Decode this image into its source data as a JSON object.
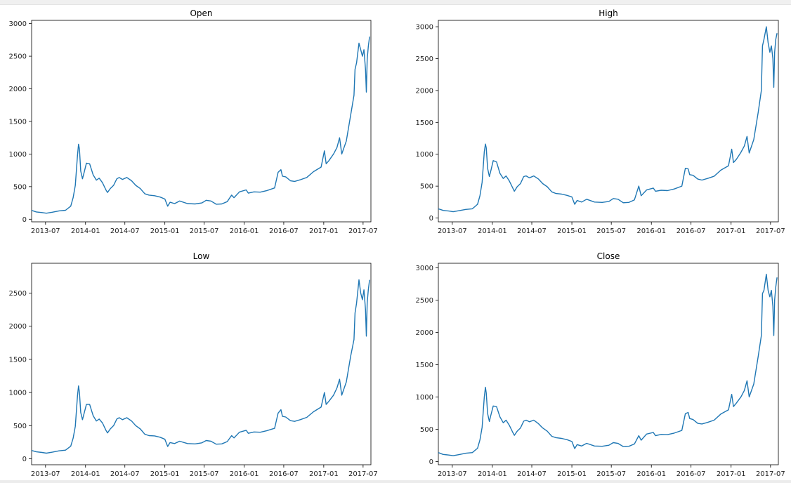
{
  "chart_data": [
    {
      "type": "line",
      "title": "Open",
      "xlabel": "",
      "ylabel": "",
      "x_start": "2013-04-28",
      "x_end": "2017-08-06",
      "x_ticks": [
        "2013-07",
        "2014-01",
        "2014-07",
        "2015-01",
        "2015-07",
        "2016-01",
        "2016-07",
        "2017-01",
        "2017-07"
      ],
      "ylim": [
        -40,
        3050
      ],
      "y_ticks": [
        0,
        500,
        1000,
        1500,
        2000,
        2500,
        3000
      ],
      "color": "#1f77b4",
      "series": [
        {
          "x": [
            "2013-04-28",
            "2013-05-20",
            "2013-06-15",
            "2013-07-05",
            "2013-08-01",
            "2013-09-01",
            "2013-10-01",
            "2013-10-25",
            "2013-11-05",
            "2013-11-15",
            "2013-11-25",
            "2013-11-30",
            "2013-12-04",
            "2013-12-10",
            "2013-12-18",
            "2013-12-25",
            "2014-01-05",
            "2014-01-20",
            "2014-02-05",
            "2014-02-20",
            "2014-03-05",
            "2014-03-20",
            "2014-04-05",
            "2014-04-12",
            "2014-04-25",
            "2014-05-10",
            "2014-05-25",
            "2014-06-05",
            "2014-06-20",
            "2014-07-10",
            "2014-08-01",
            "2014-08-20",
            "2014-09-10",
            "2014-10-01",
            "2014-10-20",
            "2014-11-15",
            "2014-12-10",
            "2015-01-01",
            "2015-01-14",
            "2015-01-25",
            "2015-02-15",
            "2015-03-10",
            "2015-04-15",
            "2015-05-20",
            "2015-06-20",
            "2015-07-10",
            "2015-08-01",
            "2015-08-25",
            "2015-09-20",
            "2015-10-15",
            "2015-11-04",
            "2015-11-15",
            "2015-12-10",
            "2016-01-10",
            "2016-01-20",
            "2016-02-15",
            "2016-03-15",
            "2016-04-15",
            "2016-05-20",
            "2016-06-05",
            "2016-06-18",
            "2016-06-25",
            "2016-07-10",
            "2016-08-01",
            "2016-08-20",
            "2016-09-15",
            "2016-10-15",
            "2016-11-15",
            "2016-12-20",
            "2017-01-04",
            "2017-01-12",
            "2017-01-25",
            "2017-02-15",
            "2017-03-03",
            "2017-03-15",
            "2017-03-25",
            "2017-04-15",
            "2017-05-05",
            "2017-05-20",
            "2017-05-25",
            "2017-06-01",
            "2017-06-12",
            "2017-06-20",
            "2017-06-28",
            "2017-07-05",
            "2017-07-12",
            "2017-07-16",
            "2017-07-20",
            "2017-07-25",
            "2017-07-31"
          ],
          "y": [
            135,
            112,
            102,
            92,
            108,
            128,
            138,
            200,
            330,
            520,
            980,
            1150,
            1080,
            740,
            620,
            710,
            860,
            850,
            680,
            600,
            630,
            560,
            450,
            410,
            470,
            520,
            620,
            640,
            610,
            640,
            590,
            520,
            470,
            390,
            370,
            360,
            340,
            310,
            200,
            260,
            240,
            280,
            240,
            235,
            250,
            290,
            280,
            230,
            235,
            270,
            370,
            330,
            420,
            450,
            400,
            420,
            415,
            440,
            480,
            720,
            760,
            660,
            650,
            590,
            580,
            605,
            640,
            730,
            800,
            1050,
            850,
            900,
            1000,
            1100,
            1250,
            1000,
            1200,
            1600,
            1900,
            2300,
            2400,
            2700,
            2600,
            2500,
            2600,
            2300,
            1950,
            2450,
            2650,
            2800
          ]
        }
      ]
    },
    {
      "type": "line",
      "title": "High",
      "xlabel": "",
      "ylabel": "",
      "x_start": "2013-04-28",
      "x_end": "2017-08-06",
      "x_ticks": [
        "2013-07",
        "2014-01",
        "2014-07",
        "2015-01",
        "2015-07",
        "2016-01",
        "2016-07",
        "2017-01",
        "2017-07"
      ],
      "ylim": [
        -60,
        3100
      ],
      "y_ticks": [
        0,
        500,
        1000,
        1500,
        2000,
        2500,
        3000
      ],
      "color": "#1f77b4",
      "series": [
        {
          "x": [
            "2013-04-28",
            "2013-05-20",
            "2013-06-15",
            "2013-07-05",
            "2013-08-01",
            "2013-09-01",
            "2013-10-01",
            "2013-10-25",
            "2013-11-05",
            "2013-11-15",
            "2013-11-25",
            "2013-11-30",
            "2013-12-04",
            "2013-12-10",
            "2013-12-18",
            "2013-12-25",
            "2014-01-05",
            "2014-01-20",
            "2014-02-05",
            "2014-02-20",
            "2014-03-05",
            "2014-03-20",
            "2014-04-05",
            "2014-04-12",
            "2014-04-25",
            "2014-05-10",
            "2014-05-25",
            "2014-06-05",
            "2014-06-20",
            "2014-07-10",
            "2014-08-01",
            "2014-08-20",
            "2014-09-10",
            "2014-10-01",
            "2014-10-20",
            "2014-11-15",
            "2014-12-10",
            "2015-01-01",
            "2015-01-14",
            "2015-01-25",
            "2015-02-15",
            "2015-03-10",
            "2015-04-15",
            "2015-05-20",
            "2015-06-20",
            "2015-07-10",
            "2015-08-01",
            "2015-08-25",
            "2015-09-20",
            "2015-10-15",
            "2015-11-04",
            "2015-11-15",
            "2015-12-10",
            "2016-01-10",
            "2016-01-20",
            "2016-02-15",
            "2016-03-15",
            "2016-04-15",
            "2016-05-20",
            "2016-06-05",
            "2016-06-18",
            "2016-06-25",
            "2016-07-10",
            "2016-08-01",
            "2016-08-20",
            "2016-09-15",
            "2016-10-15",
            "2016-11-15",
            "2016-12-20",
            "2017-01-04",
            "2017-01-12",
            "2017-01-25",
            "2017-02-15",
            "2017-03-03",
            "2017-03-15",
            "2017-03-25",
            "2017-04-15",
            "2017-05-05",
            "2017-05-20",
            "2017-05-25",
            "2017-06-01",
            "2017-06-12",
            "2017-06-20",
            "2017-06-28",
            "2017-07-05",
            "2017-07-12",
            "2017-07-16",
            "2017-07-20",
            "2017-07-25",
            "2017-07-31"
          ],
          "y": [
            145,
            120,
            110,
            98,
            115,
            135,
            145,
            215,
            350,
            560,
            1040,
            1160,
            1100,
            780,
            650,
            740,
            900,
            880,
            700,
            620,
            660,
            580,
            470,
            420,
            490,
            540,
            650,
            660,
            630,
            660,
            610,
            540,
            490,
            410,
            385,
            375,
            355,
            330,
            215,
            275,
            250,
            295,
            250,
            245,
            260,
            305,
            295,
            240,
            245,
            285,
            500,
            350,
            440,
            470,
            420,
            435,
            430,
            455,
            500,
            780,
            770,
            680,
            670,
            610,
            595,
            620,
            655,
            750,
            820,
            1080,
            870,
            920,
            1030,
            1130,
            1280,
            1020,
            1230,
            1650,
            2000,
            2700,
            2800,
            3000,
            2750,
            2600,
            2700,
            2500,
            2050,
            2600,
            2800,
            2900
          ]
        }
      ]
    },
    {
      "type": "line",
      "title": "Low",
      "xlabel": "",
      "ylabel": "",
      "x_start": "2013-04-28",
      "x_end": "2017-08-06",
      "x_ticks": [
        "2013-07",
        "2014-01",
        "2014-07",
        "2015-01",
        "2015-07",
        "2016-01",
        "2016-07",
        "2017-01",
        "2017-07"
      ],
      "ylim": [
        -90,
        2950
      ],
      "y_ticks": [
        0,
        500,
        1000,
        1500,
        2000,
        2500
      ],
      "color": "#1f77b4",
      "series": [
        {
          "x": [
            "2013-04-28",
            "2013-05-20",
            "2013-06-15",
            "2013-07-05",
            "2013-08-01",
            "2013-09-01",
            "2013-10-01",
            "2013-10-25",
            "2013-11-05",
            "2013-11-15",
            "2013-11-25",
            "2013-11-30",
            "2013-12-04",
            "2013-12-10",
            "2013-12-18",
            "2013-12-25",
            "2014-01-05",
            "2014-01-20",
            "2014-02-05",
            "2014-02-20",
            "2014-03-05",
            "2014-03-20",
            "2014-04-05",
            "2014-04-12",
            "2014-04-25",
            "2014-05-10",
            "2014-05-25",
            "2014-06-05",
            "2014-06-20",
            "2014-07-10",
            "2014-08-01",
            "2014-08-20",
            "2014-09-10",
            "2014-10-01",
            "2014-10-20",
            "2014-11-15",
            "2014-12-10",
            "2015-01-01",
            "2015-01-14",
            "2015-01-25",
            "2015-02-15",
            "2015-03-10",
            "2015-04-15",
            "2015-05-20",
            "2015-06-20",
            "2015-07-10",
            "2015-08-01",
            "2015-08-25",
            "2015-09-20",
            "2015-10-15",
            "2015-11-04",
            "2015-11-15",
            "2015-12-10",
            "2016-01-10",
            "2016-01-20",
            "2016-02-15",
            "2016-03-15",
            "2016-04-15",
            "2016-05-20",
            "2016-06-05",
            "2016-06-18",
            "2016-06-25",
            "2016-07-10",
            "2016-08-01",
            "2016-08-20",
            "2016-09-15",
            "2016-10-15",
            "2016-11-15",
            "2016-12-20",
            "2017-01-04",
            "2017-01-12",
            "2017-01-25",
            "2017-02-15",
            "2017-03-03",
            "2017-03-15",
            "2017-03-25",
            "2017-04-15",
            "2017-05-05",
            "2017-05-20",
            "2017-05-25",
            "2017-06-01",
            "2017-06-12",
            "2017-06-20",
            "2017-06-28",
            "2017-07-05",
            "2017-07-12",
            "2017-07-16",
            "2017-07-20",
            "2017-07-25",
            "2017-07-31"
          ],
          "y": [
            125,
            105,
            95,
            85,
            100,
            120,
            130,
            190,
            310,
            490,
            950,
            1100,
            1000,
            700,
            590,
            680,
            820,
            820,
            650,
            570,
            600,
            540,
            430,
            390,
            450,
            500,
            600,
            620,
            590,
            620,
            570,
            500,
            450,
            370,
            350,
            345,
            325,
            295,
            185,
            245,
            230,
            265,
            230,
            225,
            240,
            275,
            265,
            220,
            225,
            260,
            350,
            315,
            400,
            430,
            385,
            405,
            400,
            425,
            460,
            690,
            740,
            640,
            630,
            575,
            565,
            590,
            625,
            710,
            780,
            1000,
            820,
            870,
            960,
            1070,
            1200,
            960,
            1160,
            1550,
            1800,
            2200,
            2350,
            2700,
            2500,
            2400,
            2550,
            2250,
            1850,
            2350,
            2550,
            2700
          ]
        }
      ]
    },
    {
      "type": "line",
      "title": "Close",
      "xlabel": "",
      "ylabel": "",
      "x_start": "2013-04-28",
      "x_end": "2017-08-06",
      "x_ticks": [
        "2013-07",
        "2014-01",
        "2014-07",
        "2015-01",
        "2015-07",
        "2016-01",
        "2016-07",
        "2017-01",
        "2017-07"
      ],
      "ylim": [
        -50,
        3070
      ],
      "y_ticks": [
        0,
        500,
        1000,
        1500,
        2000,
        2500,
        3000
      ],
      "color": "#1f77b4",
      "series": [
        {
          "x": [
            "2013-04-28",
            "2013-05-20",
            "2013-06-15",
            "2013-07-05",
            "2013-08-01",
            "2013-09-01",
            "2013-10-01",
            "2013-10-25",
            "2013-11-05",
            "2013-11-15",
            "2013-11-25",
            "2013-11-30",
            "2013-12-04",
            "2013-12-10",
            "2013-12-18",
            "2013-12-25",
            "2014-01-05",
            "2014-01-20",
            "2014-02-05",
            "2014-02-20",
            "2014-03-05",
            "2014-03-20",
            "2014-04-05",
            "2014-04-12",
            "2014-04-25",
            "2014-05-10",
            "2014-05-25",
            "2014-06-05",
            "2014-06-20",
            "2014-07-10",
            "2014-08-01",
            "2014-08-20",
            "2014-09-10",
            "2014-10-01",
            "2014-10-20",
            "2014-11-15",
            "2014-12-10",
            "2015-01-01",
            "2015-01-14",
            "2015-01-25",
            "2015-02-15",
            "2015-03-10",
            "2015-04-15",
            "2015-05-20",
            "2015-06-20",
            "2015-07-10",
            "2015-08-01",
            "2015-08-25",
            "2015-09-20",
            "2015-10-15",
            "2015-11-04",
            "2015-11-15",
            "2015-12-10",
            "2016-01-10",
            "2016-01-20",
            "2016-02-15",
            "2016-03-15",
            "2016-04-15",
            "2016-05-20",
            "2016-06-05",
            "2016-06-18",
            "2016-06-25",
            "2016-07-10",
            "2016-08-01",
            "2016-08-20",
            "2016-09-15",
            "2016-10-15",
            "2016-11-15",
            "2016-12-20",
            "2017-01-04",
            "2017-01-12",
            "2017-01-25",
            "2017-02-15",
            "2017-03-03",
            "2017-03-15",
            "2017-03-25",
            "2017-04-15",
            "2017-05-05",
            "2017-05-20",
            "2017-05-25",
            "2017-06-01",
            "2017-06-12",
            "2017-06-20",
            "2017-06-28",
            "2017-07-05",
            "2017-07-12",
            "2017-07-16",
            "2017-07-20",
            "2017-07-25",
            "2017-07-31"
          ],
          "y": [
            138,
            110,
            100,
            90,
            106,
            128,
            138,
            205,
            335,
            530,
            1000,
            1150,
            1060,
            745,
            620,
            715,
            860,
            850,
            690,
            600,
            640,
            560,
            450,
            405,
            470,
            520,
            625,
            640,
            615,
            640,
            585,
            520,
            470,
            390,
            370,
            358,
            338,
            310,
            200,
            262,
            240,
            282,
            240,
            236,
            252,
            292,
            280,
            232,
            236,
            272,
            400,
            330,
            425,
            450,
            400,
            420,
            416,
            440,
            482,
            740,
            760,
            665,
            650,
            590,
            582,
            605,
            640,
            735,
            800,
            1040,
            850,
            905,
            1000,
            1100,
            1250,
            1000,
            1200,
            1620,
            1950,
            2600,
            2650,
            2900,
            2650,
            2550,
            2650,
            2400,
            1950,
            2500,
            2700,
            2850
          ]
        }
      ]
    }
  ]
}
